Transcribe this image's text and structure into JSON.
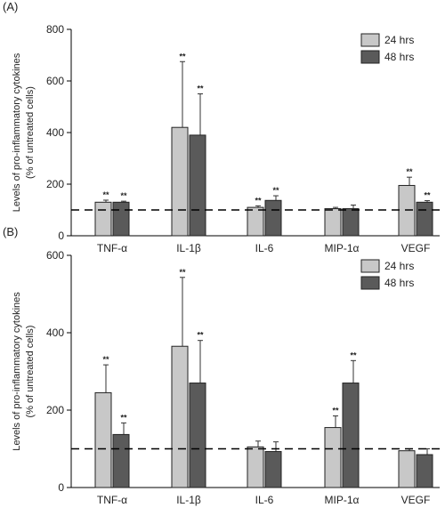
{
  "chart_data": [
    {
      "type": "bar",
      "panel_label": "(A)",
      "ylabel_line1": "Levels of pro-inflammatory cytokines",
      "ylabel_line2": "(% of untreated cells)",
      "categories": [
        "TNF-α",
        "IL-1β",
        "IL-6",
        "MIP-1α",
        "VEGF"
      ],
      "ylim": [
        0,
        800
      ],
      "yticks": [
        0,
        200,
        400,
        600,
        800
      ],
      "baseline": 100,
      "legend_position": "top-right",
      "series": [
        {
          "name": "24 hrs",
          "color": "#c8c8c8",
          "values": [
            130,
            420,
            110,
            105,
            195
          ],
          "errors": [
            8,
            255,
            6,
            5,
            32
          ],
          "significance": [
            "**",
            "**",
            "**",
            "",
            "**"
          ]
        },
        {
          "name": "48 hrs",
          "color": "#5a5a5a",
          "values": [
            130,
            390,
            137,
            105,
            130
          ],
          "errors": [
            4,
            160,
            18,
            14,
            6
          ],
          "significance": [
            "**",
            "**",
            "**",
            "",
            "**"
          ]
        }
      ]
    },
    {
      "type": "bar",
      "panel_label": "(B)",
      "ylabel_line1": "Levels of pro-inflammatory cytokines",
      "ylabel_line2": "(% of untreated cells)",
      "categories": [
        "TNF-α",
        "IL-1β",
        "IL-6",
        "MIP-1α",
        "VEGF"
      ],
      "ylim": [
        0,
        600
      ],
      "yticks": [
        0,
        200,
        400,
        600
      ],
      "baseline": 100,
      "legend_position": "top-right",
      "series": [
        {
          "name": "24 hrs",
          "color": "#c8c8c8",
          "values": [
            245,
            365,
            105,
            155,
            95
          ],
          "errors": [
            72,
            178,
            15,
            30,
            5
          ],
          "significance": [
            "**",
            "**",
            "",
            "**",
            ""
          ]
        },
        {
          "name": "48 hrs",
          "color": "#5a5a5a",
          "values": [
            137,
            270,
            93,
            270,
            85
          ],
          "errors": [
            30,
            110,
            25,
            58,
            15
          ],
          "significance": [
            "**",
            "**",
            "",
            "**",
            ""
          ]
        }
      ]
    }
  ]
}
